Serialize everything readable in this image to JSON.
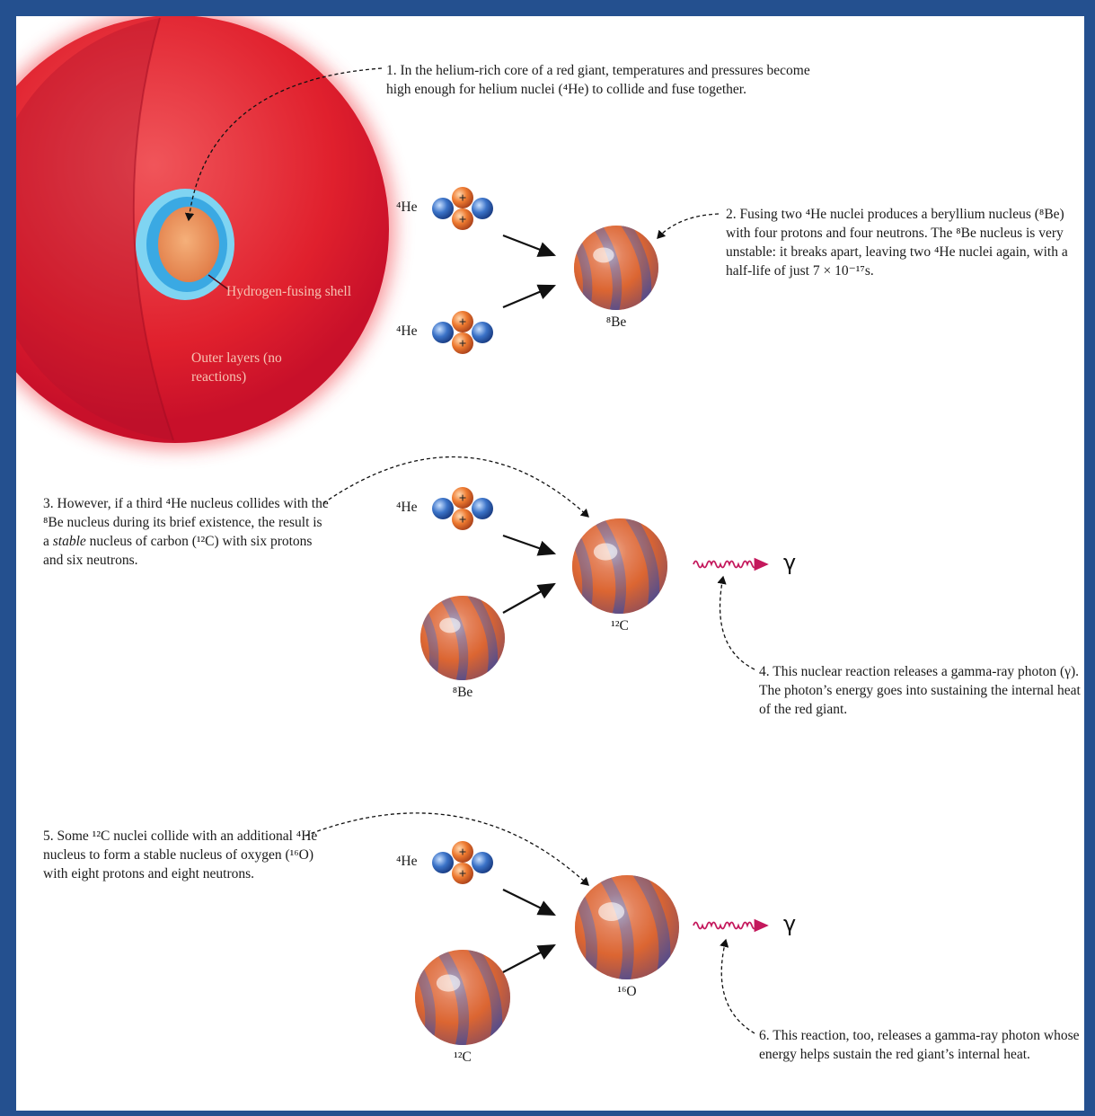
{
  "steps": [
    {
      "text": "1. In the helium-rich core of a red giant, temperatures and pressures become high enough for helium nuclei (⁴He) to collide and fuse together."
    },
    {
      "text": "2. Fusing two ⁴He nuclei produces a beryllium nucleus (⁸Be) with four protons and four neutrons. The ⁸Be nucleus is very unstable: it breaks apart, leaving two ⁴He nuclei again, with a half-life of just 7 × 10⁻¹⁷s."
    },
    {
      "text_before": "3. However, if a third ⁴He nucleus collides with the ⁸Be nucleus during its brief existence, the result is a",
      "emphasis": "stable",
      "text_after": "nucleus of carbon (¹²C) with six protons and six neutrons."
    },
    {
      "text": "4. This nuclear reaction releases a gamma-ray photon (γ). The photon’s energy goes into sustaining the internal heat of the red giant."
    },
    {
      "text": "5. Some ¹²C nuclei collide with an additional ⁴He nucleus to form a stable nucleus of oxygen (¹⁶O) with eight protons and eight neutrons."
    },
    {
      "text": "6. This reaction, too, releases a gamma-ray photon whose energy helps sustain the red giant’s internal heat."
    }
  ],
  "star_labels": {
    "hydrogen_shell": "Hydrogen-fusing shell",
    "outer_layers": "Outer layers (no reactions)"
  },
  "helium": [
    {
      "label": "⁴He"
    },
    {
      "label": "⁴He"
    },
    {
      "label": "⁴He"
    },
    {
      "label": "⁴He"
    }
  ],
  "proton_sign": "+",
  "nuclei": [
    {
      "label": "⁸Be"
    },
    {
      "label": "¹²C"
    },
    {
      "label": "⁸Be"
    },
    {
      "label": "¹⁶O"
    },
    {
      "label": "¹²C"
    }
  ],
  "photons": [
    {
      "label": "γ"
    },
    {
      "label": "γ"
    }
  ]
}
